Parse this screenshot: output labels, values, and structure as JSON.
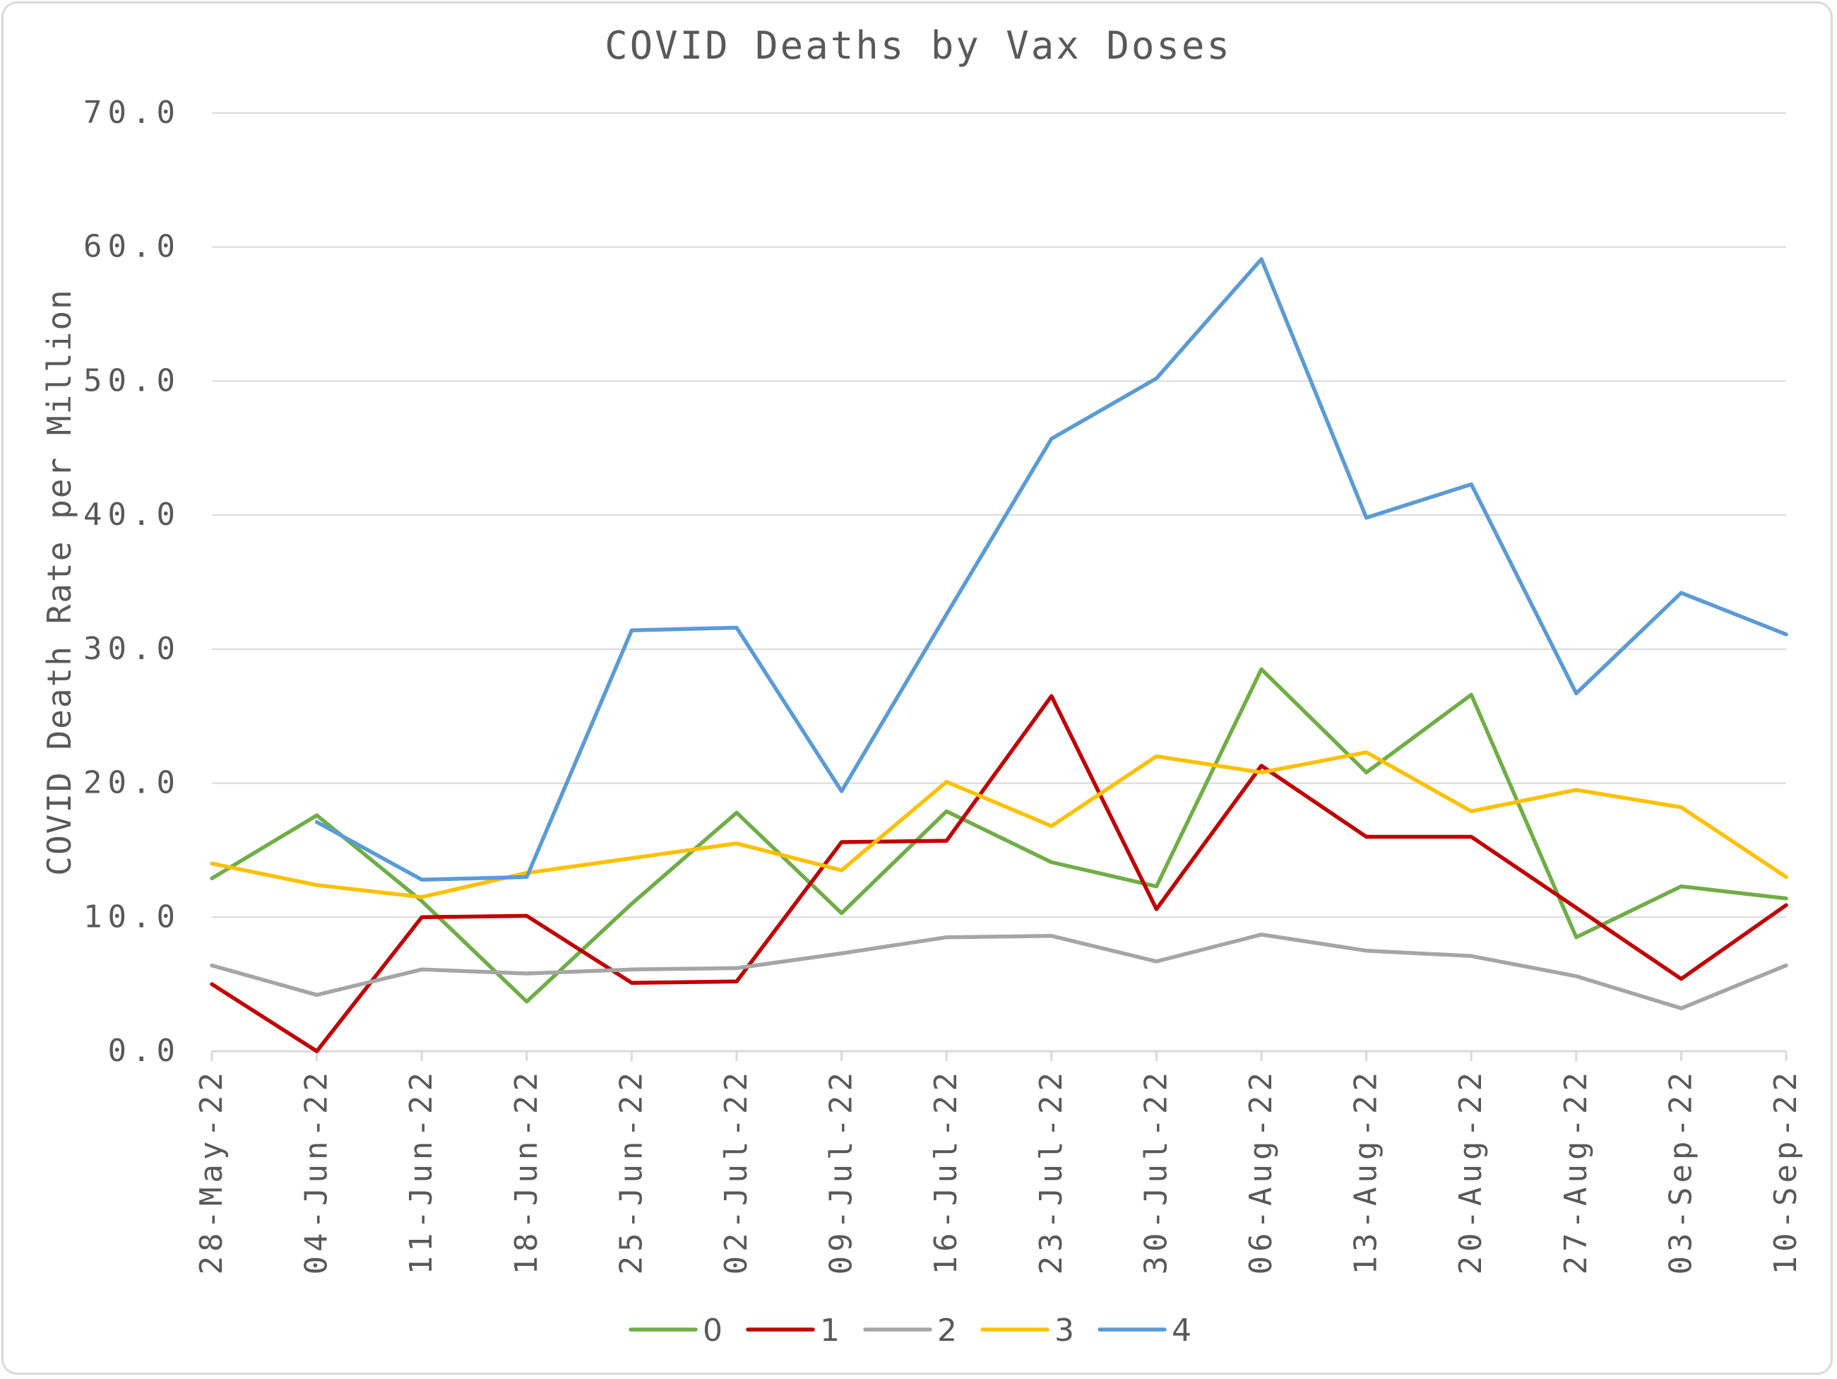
{
  "chart_data": {
    "type": "line",
    "title": "COVID Deaths by Vax Doses",
    "xlabel": "",
    "ylabel": "COVID Death Rate per Million",
    "ylim": [
      0,
      70
    ],
    "yticks": [
      "0.0",
      "10.0",
      "20.0",
      "30.0",
      "40.0",
      "50.0",
      "60.0",
      "70.0"
    ],
    "grid": true,
    "legend_position": "bottom",
    "categories": [
      "28-May-22",
      "04-Jun-22",
      "11-Jun-22",
      "18-Jun-22",
      "25-Jun-22",
      "02-Jul-22",
      "09-Jul-22",
      "16-Jul-22",
      "23-Jul-22",
      "30-Jul-22",
      "06-Aug-22",
      "13-Aug-22",
      "20-Aug-22",
      "27-Aug-22",
      "03-Sep-22",
      "10-Sep-22"
    ],
    "series": [
      {
        "name": "0",
        "color": "#70ad47",
        "values": [
          12.9,
          17.6,
          11.2,
          3.7,
          11.0,
          17.8,
          10.3,
          17.9,
          14.1,
          12.3,
          28.5,
          20.8,
          26.6,
          8.5,
          12.3,
          11.4
        ]
      },
      {
        "name": "1",
        "color": "#c00000",
        "values": [
          5.0,
          0.0,
          10.0,
          10.1,
          5.1,
          5.2,
          15.6,
          15.7,
          26.5,
          10.6,
          21.3,
          16.0,
          16.0,
          10.7,
          5.4,
          10.9
        ]
      },
      {
        "name": "2",
        "color": "#a5a5a5",
        "values": [
          6.4,
          4.2,
          6.1,
          5.8,
          6.1,
          6.2,
          7.3,
          8.5,
          8.6,
          6.7,
          8.7,
          7.5,
          7.1,
          5.6,
          3.2,
          6.4
        ]
      },
      {
        "name": "3",
        "color": "#ffc000",
        "values": [
          14.0,
          12.4,
          11.5,
          13.3,
          14.4,
          15.5,
          13.5,
          20.1,
          16.8,
          22.0,
          20.8,
          22.3,
          17.9,
          19.5,
          18.2,
          13.0
        ]
      },
      {
        "name": "4",
        "color": "#5b9bd5",
        "values": [
          null,
          17.1,
          12.8,
          13.0,
          31.4,
          31.6,
          19.4,
          32.6,
          45.7,
          50.2,
          59.1,
          39.8,
          42.3,
          26.7,
          34.2,
          31.1
        ]
      }
    ]
  }
}
